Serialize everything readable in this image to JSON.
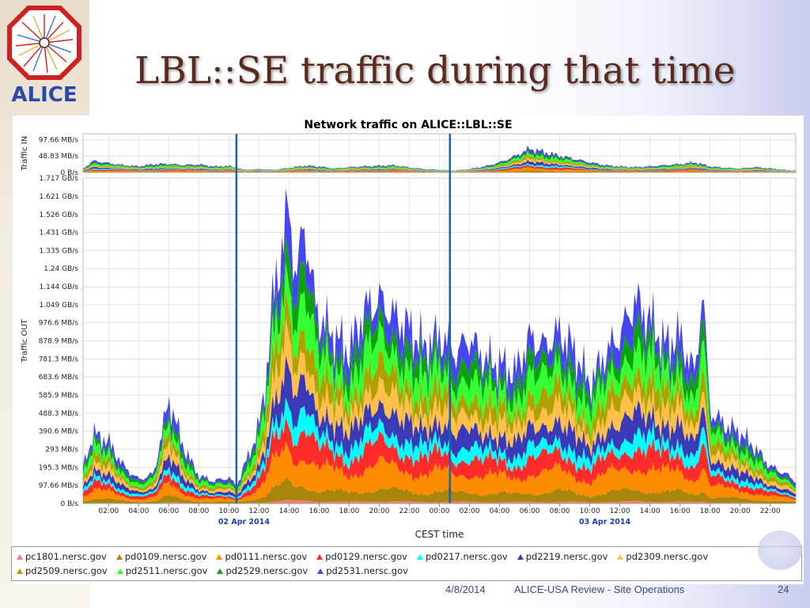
{
  "slide": {
    "title": "LBL::SE traffic during that time",
    "logo_text": "ALICE",
    "footer_date": "4/8/2014",
    "footer_center": "ALICE-USA Review - Site Operations",
    "page_number": "24"
  },
  "chart_data": {
    "type": "area",
    "title": "Network traffic on ALICE::LBL::SE",
    "xlabel": "CEST time",
    "x_ticks": [
      "02:00",
      "04:00",
      "06:00",
      "08:00",
      "10:00",
      "12:00",
      "14:00",
      "16:00",
      "18:00",
      "20:00",
      "22:00",
      "00:00",
      "02:00",
      "04:00",
      "06:00",
      "08:00",
      "10:00",
      "12:00",
      "14:00",
      "16:00",
      "18:00",
      "20:00",
      "22:00"
    ],
    "x_tick_hours": [
      2,
      4,
      6,
      8,
      10,
      12,
      14,
      16,
      18,
      20,
      22,
      24,
      26,
      28,
      30,
      32,
      34,
      36,
      38,
      40,
      42,
      44,
      46
    ],
    "date_labels": [
      {
        "text": "02 Apr 2014",
        "hour": 11
      },
      {
        "text": "03 Apr 2014",
        "hour": 35
      }
    ],
    "x_range_hours": [
      0.3,
      47.7
    ],
    "markers_hours": [
      10.5,
      24.7
    ],
    "panels": [
      {
        "name": "Traffic IN",
        "ylabel": "Traffic IN",
        "y_ticks": [
          "97.66 MB/s",
          "48.83 MB/s",
          "0 B/s"
        ],
        "y_tick_values": [
          97.66,
          48.83,
          0
        ],
        "ylim": [
          0,
          115
        ],
        "total_profile": [
          [
            0.3,
            12
          ],
          [
            1,
            35
          ],
          [
            2,
            28
          ],
          [
            3,
            22
          ],
          [
            4,
            18
          ],
          [
            5,
            25
          ],
          [
            6,
            26
          ],
          [
            7,
            22
          ],
          [
            8,
            24
          ],
          [
            9,
            18
          ],
          [
            10,
            20
          ],
          [
            11,
            8
          ],
          [
            12,
            10
          ],
          [
            13,
            8
          ],
          [
            14,
            14
          ],
          [
            15,
            20
          ],
          [
            16,
            18
          ],
          [
            17,
            12
          ],
          [
            18,
            16
          ],
          [
            19,
            18
          ],
          [
            20,
            20
          ],
          [
            21,
            22
          ],
          [
            22,
            15
          ],
          [
            23,
            10
          ],
          [
            24,
            8
          ],
          [
            25,
            6
          ],
          [
            26,
            10
          ],
          [
            27,
            18
          ],
          [
            28,
            30
          ],
          [
            29,
            48
          ],
          [
            30,
            70
          ],
          [
            31,
            60
          ],
          [
            32,
            50
          ],
          [
            33,
            40
          ],
          [
            34,
            30
          ],
          [
            35,
            22
          ],
          [
            36,
            18
          ],
          [
            37,
            16
          ],
          [
            38,
            18
          ],
          [
            39,
            22
          ],
          [
            40,
            25
          ],
          [
            41,
            30
          ],
          [
            42,
            18
          ],
          [
            43,
            14
          ],
          [
            44,
            12
          ],
          [
            45,
            16
          ],
          [
            46,
            12
          ],
          [
            47,
            8
          ],
          [
            47.7,
            6
          ]
        ]
      },
      {
        "name": "Traffic OUT",
        "ylabel": "Traffic OUT",
        "y_ticks": [
          "1.717 GB/s",
          "1.621 GB/s",
          "1.526 GB/s",
          "1.431 GB/s",
          "1.335 GB/s",
          "1.24 GB/s",
          "1.144 GB/s",
          "1.049 GB/s",
          "976.6 MB/s",
          "878.9 MB/s",
          "781.3 MB/s",
          "683.6 MB/s",
          "585.9 MB/s",
          "488.3 MB/s",
          "390.6 MB/s",
          "293 MB/s",
          "195.3 MB/s",
          "97.66 MB/s",
          "0 B/s"
        ],
        "y_tick_values": [
          1758,
          1660,
          1562,
          1465,
          1367,
          1270,
          1171,
          1074,
          976.6,
          878.9,
          781.3,
          683.6,
          585.9,
          488.3,
          390.6,
          293,
          195.3,
          97.66,
          0
        ],
        "ylim": [
          0,
          1758
        ],
        "total_profile": [
          [
            0.3,
            200
          ],
          [
            1,
            380
          ],
          [
            2,
            330
          ],
          [
            3,
            200
          ],
          [
            4,
            130
          ],
          [
            5,
            160
          ],
          [
            6,
            560
          ],
          [
            7,
            300
          ],
          [
            8,
            150
          ],
          [
            9,
            120
          ],
          [
            10,
            140
          ],
          [
            10.5,
            90
          ],
          [
            11,
            200
          ],
          [
            11.5,
            300
          ],
          [
            12,
            420
          ],
          [
            12.5,
            700
          ],
          [
            13,
            1150
          ],
          [
            13.5,
            1350
          ],
          [
            14,
            1600
          ],
          [
            14.5,
            1200
          ],
          [
            15,
            1550
          ],
          [
            15.5,
            1200
          ],
          [
            16,
            1000
          ],
          [
            17,
            900
          ],
          [
            18,
            820
          ],
          [
            19,
            1050
          ],
          [
            20,
            1100
          ],
          [
            21,
            1000
          ],
          [
            22,
            950
          ],
          [
            23,
            850
          ],
          [
            24,
            900
          ],
          [
            24.7,
            850
          ],
          [
            25,
            800
          ],
          [
            26,
            900
          ],
          [
            27,
            780
          ],
          [
            28,
            750
          ],
          [
            29,
            700
          ],
          [
            30,
            900
          ],
          [
            31,
            850
          ],
          [
            32,
            920
          ],
          [
            33,
            820
          ],
          [
            34,
            650
          ],
          [
            35,
            800
          ],
          [
            36,
            900
          ],
          [
            37,
            1100
          ],
          [
            38,
            1000
          ],
          [
            39,
            850
          ],
          [
            40,
            900
          ],
          [
            41,
            700
          ],
          [
            41.5,
            1180
          ],
          [
            42,
            500
          ],
          [
            43,
            420
          ],
          [
            44,
            380
          ],
          [
            45,
            300
          ],
          [
            46,
            200
          ],
          [
            47,
            160
          ],
          [
            47.7,
            120
          ]
        ]
      }
    ],
    "series": [
      {
        "name": "pc1801.nersc.gov",
        "color": "#ff7a7a",
        "share": 0.01
      },
      {
        "name": "pd0109.nersc.gov",
        "color": "#a8860b",
        "share": 0.06
      },
      {
        "name": "pd0111.nersc.gov",
        "color": "#ff8c00",
        "share": 0.12
      },
      {
        "name": "pd0129.nersc.gov",
        "color": "#ff2a2a",
        "share": 0.1
      },
      {
        "name": "pd0217.nersc.gov",
        "color": "#00ffff",
        "share": 0.07
      },
      {
        "name": "pd2219.nersc.gov",
        "color": "#3a3ab8",
        "share": 0.11
      },
      {
        "name": "pd2309.nersc.gov",
        "color": "#ffc04a",
        "share": 0.1
      },
      {
        "name": "pd2509.nersc.gov",
        "color": "#b0a000",
        "share": 0.1
      },
      {
        "name": "pd2511.nersc.gov",
        "color": "#33ff33",
        "share": 0.12
      },
      {
        "name": "pd2529.nersc.gov",
        "color": "#0aa30a",
        "share": 0.09
      },
      {
        "name": "pd2531.nersc.gov",
        "color": "#4646f0",
        "share": 0.12
      }
    ],
    "grid": true,
    "legend_position": "bottom"
  }
}
